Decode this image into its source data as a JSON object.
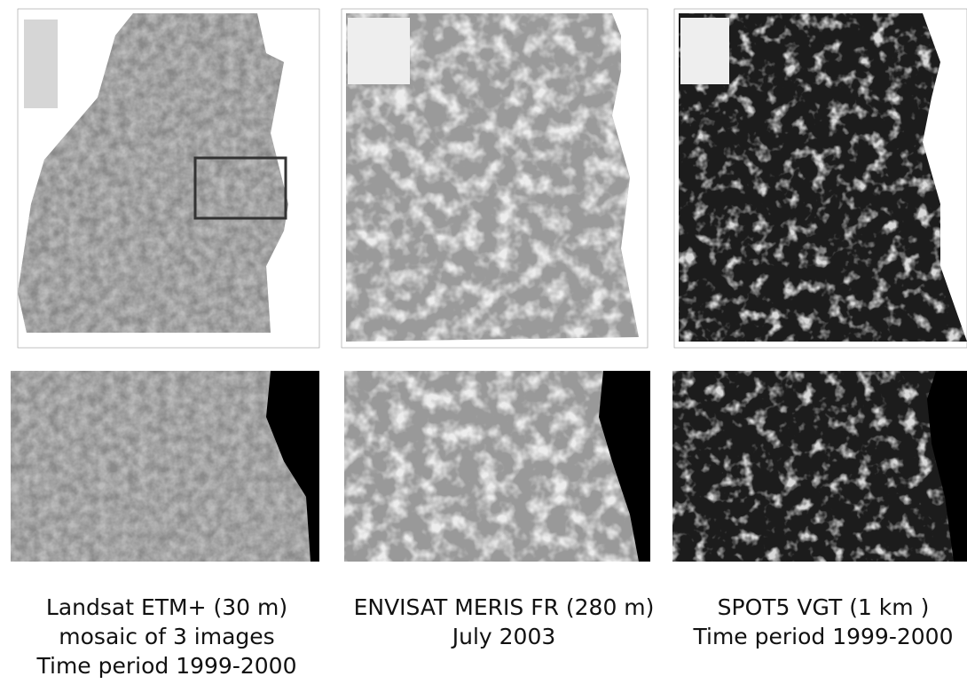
{
  "figure": {
    "panels": [
      {
        "caption": [
          "Landsat ETM+ (30 m)",
          "mosaic of 3 images",
          "Time period 1999-2000"
        ]
      },
      {
        "caption": [
          "ENVISAT MERIS FR (280 m)",
          "July 2003"
        ]
      },
      {
        "caption": [
          "SPOT5 VGT (1 km )",
          "Time period 1999-2000"
        ]
      }
    ]
  }
}
